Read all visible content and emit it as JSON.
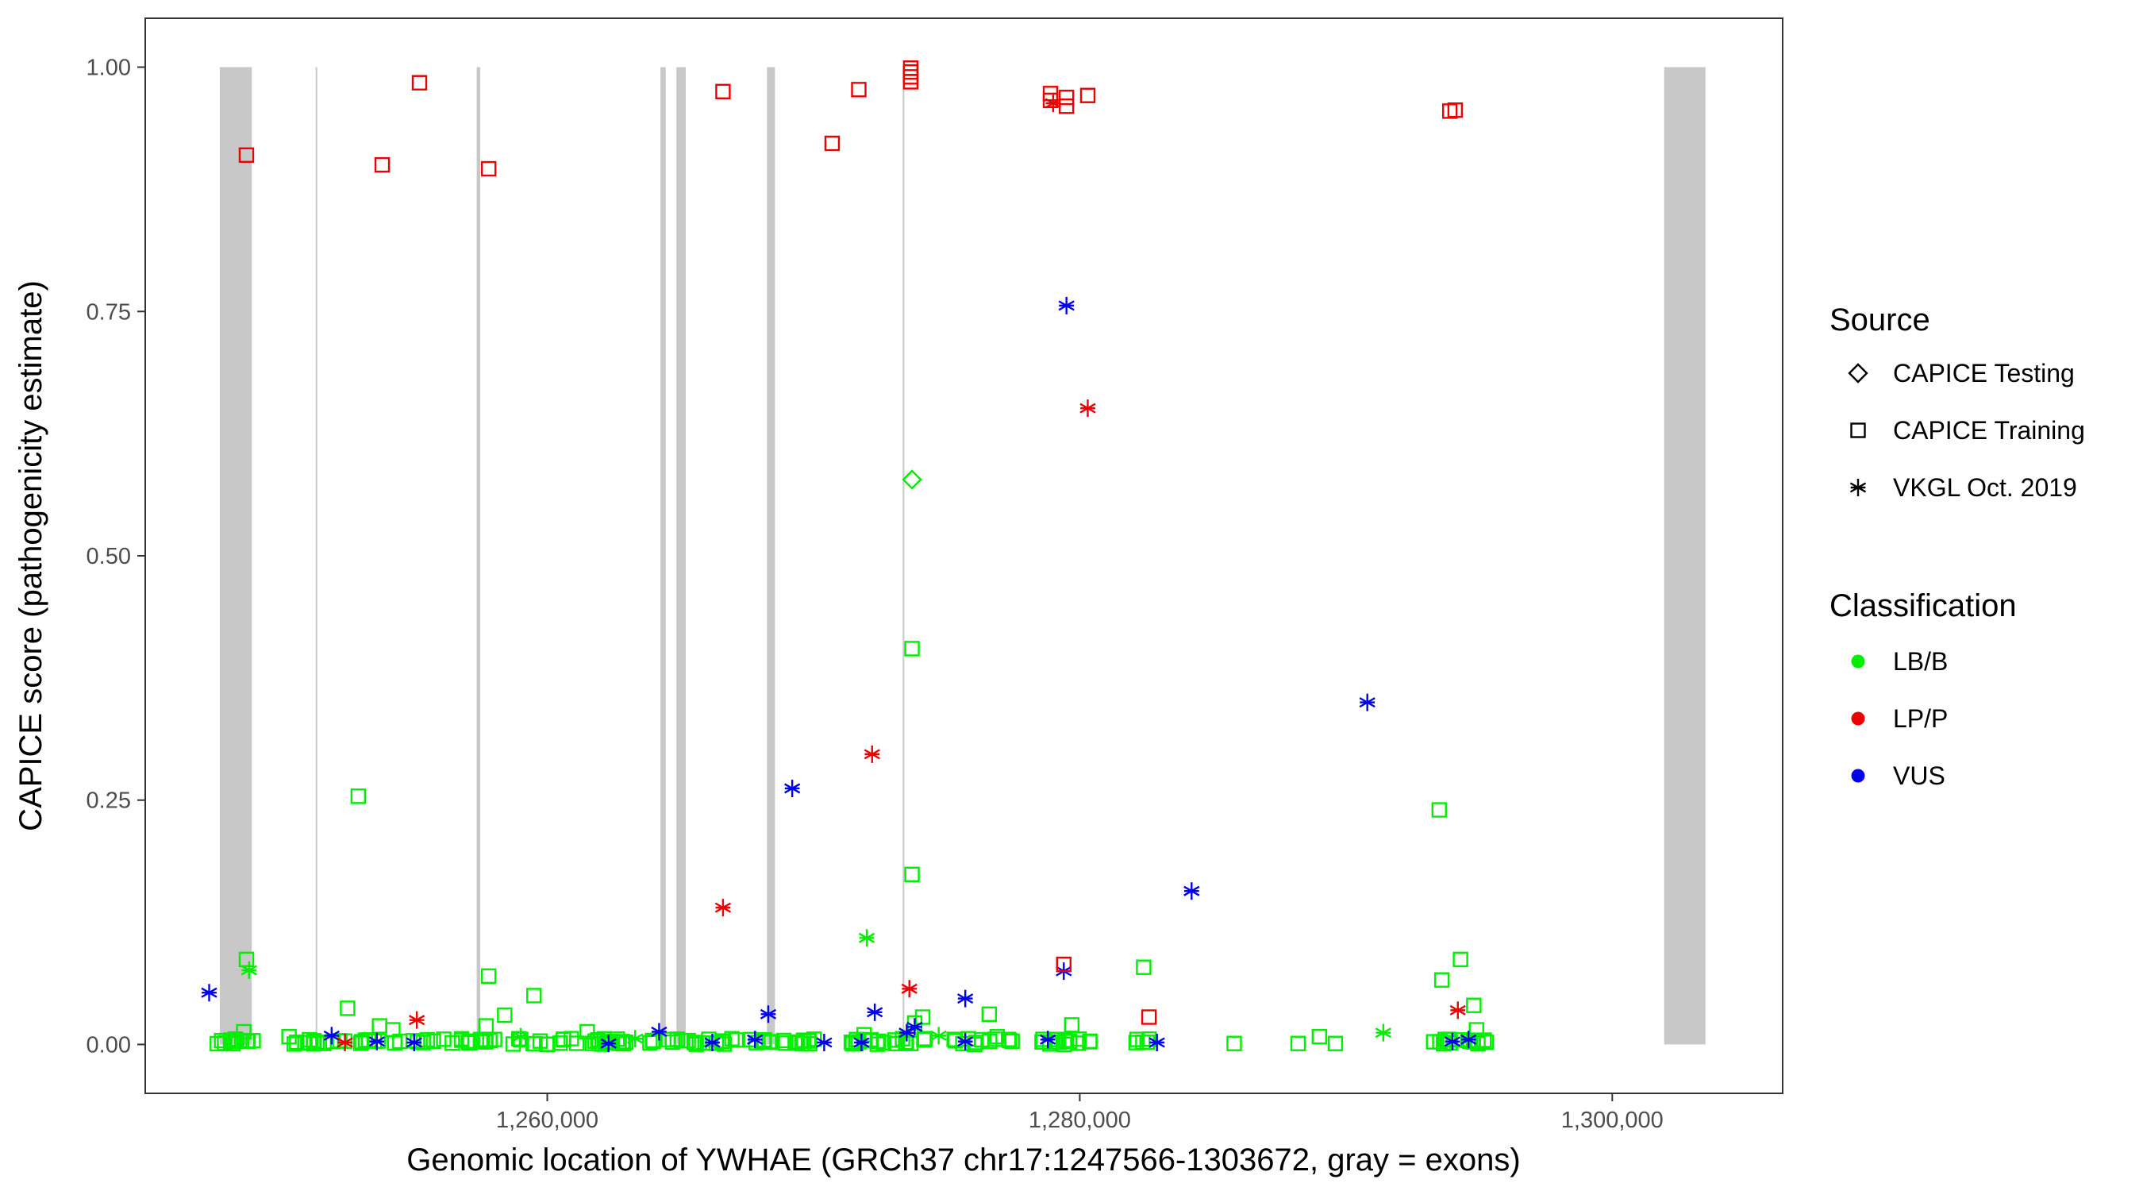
{
  "chart_data": {
    "type": "scatter",
    "title": "",
    "xlabel": "Genomic location of YWHAE (GRCh37 chr17:1247566-1303672, gray = exons)",
    "ylabel": "CAPICE score (pathogenicity estimate)",
    "xlim": [
      1244900,
      1306400
    ],
    "ylim": [
      -0.05,
      1.05
    ],
    "x_ticks": [
      1260000,
      1280000,
      1300000
    ],
    "x_tick_labels": [
      "1,260,000",
      "1,280,000",
      "1,300,000"
    ],
    "y_ticks": [
      0,
      0.25,
      0.5,
      0.75,
      1.0
    ],
    "y_tick_labels": [
      "0.00",
      "0.25",
      "0.50",
      "0.75",
      "1.00"
    ],
    "grid": false,
    "legend_position": "right",
    "exon_color": "#c8c8c8",
    "exons": [
      [
        1247700,
        1248900
      ],
      [
        1251300,
        1251360
      ],
      [
        1257350,
        1257480
      ],
      [
        1264250,
        1264450
      ],
      [
        1264850,
        1265200
      ],
      [
        1268250,
        1268550
      ],
      [
        1273350,
        1273410
      ],
      [
        1301950,
        1303500
      ]
    ],
    "legend_source": {
      "title": "Source",
      "items": [
        {
          "label": "CAPICE Testing",
          "shape": "diamond"
        },
        {
          "label": "CAPICE Training",
          "shape": "square"
        },
        {
          "label": "VKGL Oct. 2019",
          "shape": "asterisk"
        }
      ]
    },
    "legend_classification": {
      "title": "Classification",
      "items": [
        {
          "label": "LB/B",
          "color": "#00ee00"
        },
        {
          "label": "LP/P",
          "color": "#ee0000"
        },
        {
          "label": "VUS",
          "color": "#0000ee"
        }
      ]
    },
    "series": [
      {
        "class": "LP/P",
        "source": "CAPICE Training",
        "points": [
          [
            1248700,
            0.91
          ],
          [
            1253800,
            0.9
          ],
          [
            1255200,
            0.984
          ],
          [
            1257800,
            0.896
          ],
          [
            1266600,
            0.975
          ],
          [
            1270700,
            0.922
          ],
          [
            1271700,
            0.977
          ],
          [
            1273650,
            0.985
          ],
          [
            1273650,
            0.99
          ],
          [
            1273650,
            0.995
          ],
          [
            1273650,
            0.999
          ],
          [
            1278900,
            0.973
          ],
          [
            1278900,
            0.966
          ],
          [
            1279500,
            0.96
          ],
          [
            1279500,
            0.969
          ],
          [
            1280300,
            0.971
          ],
          [
            1293900,
            0.955
          ],
          [
            1294100,
            0.956
          ],
          [
            1279400,
            0.082
          ],
          [
            1282600,
            0.028
          ]
        ]
      },
      {
        "class": "LP/P",
        "source": "VKGL Oct. 2019",
        "points": [
          [
            1279000,
            0.963
          ],
          [
            1280300,
            0.651
          ],
          [
            1272200,
            0.297
          ],
          [
            1266600,
            0.14
          ],
          [
            1273600,
            0.057
          ],
          [
            1255100,
            0.025
          ],
          [
            1252400,
            0.002
          ],
          [
            1294200,
            0.035
          ]
        ]
      },
      {
        "class": "VUS",
        "source": "VKGL Oct. 2019",
        "points": [
          [
            1279500,
            0.756
          ],
          [
            1290800,
            0.35
          ],
          [
            1269200,
            0.262
          ],
          [
            1284200,
            0.157
          ],
          [
            1279400,
            0.075
          ],
          [
            1247300,
            0.053
          ],
          [
            1275700,
            0.047
          ],
          [
            1272300,
            0.033
          ],
          [
            1268300,
            0.031
          ],
          [
            1273800,
            0.018
          ],
          [
            1264200,
            0.013
          ],
          [
            1251900,
            0.009
          ],
          [
            1253600,
            0.003
          ],
          [
            1255000,
            0.002
          ],
          [
            1266200,
            0.002
          ],
          [
            1267800,
            0.005
          ],
          [
            1270400,
            0.002
          ],
          [
            1271800,
            0.002
          ],
          [
            1275700,
            0.003
          ],
          [
            1278800,
            0.005
          ],
          [
            1282900,
            0.002
          ],
          [
            1294000,
            0.003
          ],
          [
            1294600,
            0.005
          ],
          [
            1262300,
            0.001
          ],
          [
            1273500,
            0.012
          ]
        ]
      },
      {
        "class": "LB/B",
        "source": "CAPICE Testing",
        "points": [
          [
            1273700,
            0.578
          ]
        ]
      },
      {
        "class": "LB/B",
        "source": "CAPICE Training",
        "points": [
          [
            1273700,
            0.405
          ],
          [
            1252900,
            0.254
          ],
          [
            1293500,
            0.24
          ],
          [
            1273700,
            0.174
          ],
          [
            1248700,
            0.087
          ],
          [
            1282400,
            0.079
          ],
          [
            1257800,
            0.07
          ],
          [
            1293600,
            0.066
          ],
          [
            1294300,
            0.087
          ],
          [
            1259500,
            0.05
          ],
          [
            1252500,
            0.037
          ],
          [
            1276600,
            0.031
          ],
          [
            1258400,
            0.03
          ],
          [
            1274100,
            0.028
          ],
          [
            1257700,
            0.019
          ],
          [
            1253700,
            0.019
          ],
          [
            1254200,
            0.015
          ],
          [
            1248600,
            0.013
          ],
          [
            1261500,
            0.013
          ],
          [
            1273800,
            0.022
          ],
          [
            1279700,
            0.02
          ],
          [
            1294800,
            0.04
          ],
          [
            1250300,
            0.008
          ],
          [
            1271900,
            0.01
          ],
          [
            1276900,
            0.008
          ],
          [
            1289000,
            0.008
          ],
          [
            1285800,
            0.001
          ],
          [
            1288200,
            0.001
          ],
          [
            1289600,
            0.001
          ],
          [
            1294900,
            0.015
          ]
        ]
      },
      {
        "class": "LB/B",
        "source": "VKGL Oct. 2019",
        "points": [
          [
            1248800,
            0.076
          ],
          [
            1272000,
            0.109
          ],
          [
            1291400,
            0.012
          ],
          [
            1259000,
            0.008
          ],
          [
            1263300,
            0.006
          ],
          [
            1274700,
            0.009
          ]
        ]
      },
      {
        "class": "LB/B",
        "source": "CAPICE Training",
        "dense": true,
        "clusters": [
          [
            1247500,
            1249000,
            14
          ],
          [
            1249800,
            1252500,
            12
          ],
          [
            1252700,
            1256000,
            14
          ],
          [
            1256000,
            1258000,
            14
          ],
          [
            1258000,
            1262000,
            18
          ],
          [
            1262000,
            1264500,
            14
          ],
          [
            1264500,
            1268000,
            18
          ],
          [
            1268000,
            1270800,
            16
          ],
          [
            1270800,
            1274200,
            20
          ],
          [
            1275200,
            1277500,
            12
          ],
          [
            1278200,
            1280400,
            16
          ],
          [
            1281500,
            1283000,
            5
          ],
          [
            1293200,
            1295500,
            18
          ]
        ]
      }
    ]
  }
}
